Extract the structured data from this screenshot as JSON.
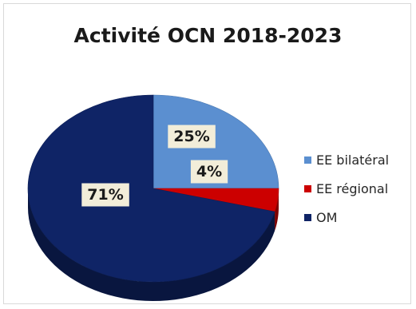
{
  "chart_data": {
    "type": "pie",
    "title": "Activité OCN 2018-2023",
    "slices": [
      {
        "name": "EE bilatéral",
        "value": 25,
        "label": "25%",
        "color": "#5b8fd0"
      },
      {
        "name": "EE régional",
        "value": 4,
        "label": "4%",
        "color": "#cc0000"
      },
      {
        "name": "OM",
        "value": 71,
        "label": "71%",
        "color": "#0f2466"
      }
    ],
    "start_angle": "12 o'clock",
    "direction": "clockwise",
    "style": "3d",
    "legend_position": "right",
    "data_label_background": "#f2edd9"
  }
}
